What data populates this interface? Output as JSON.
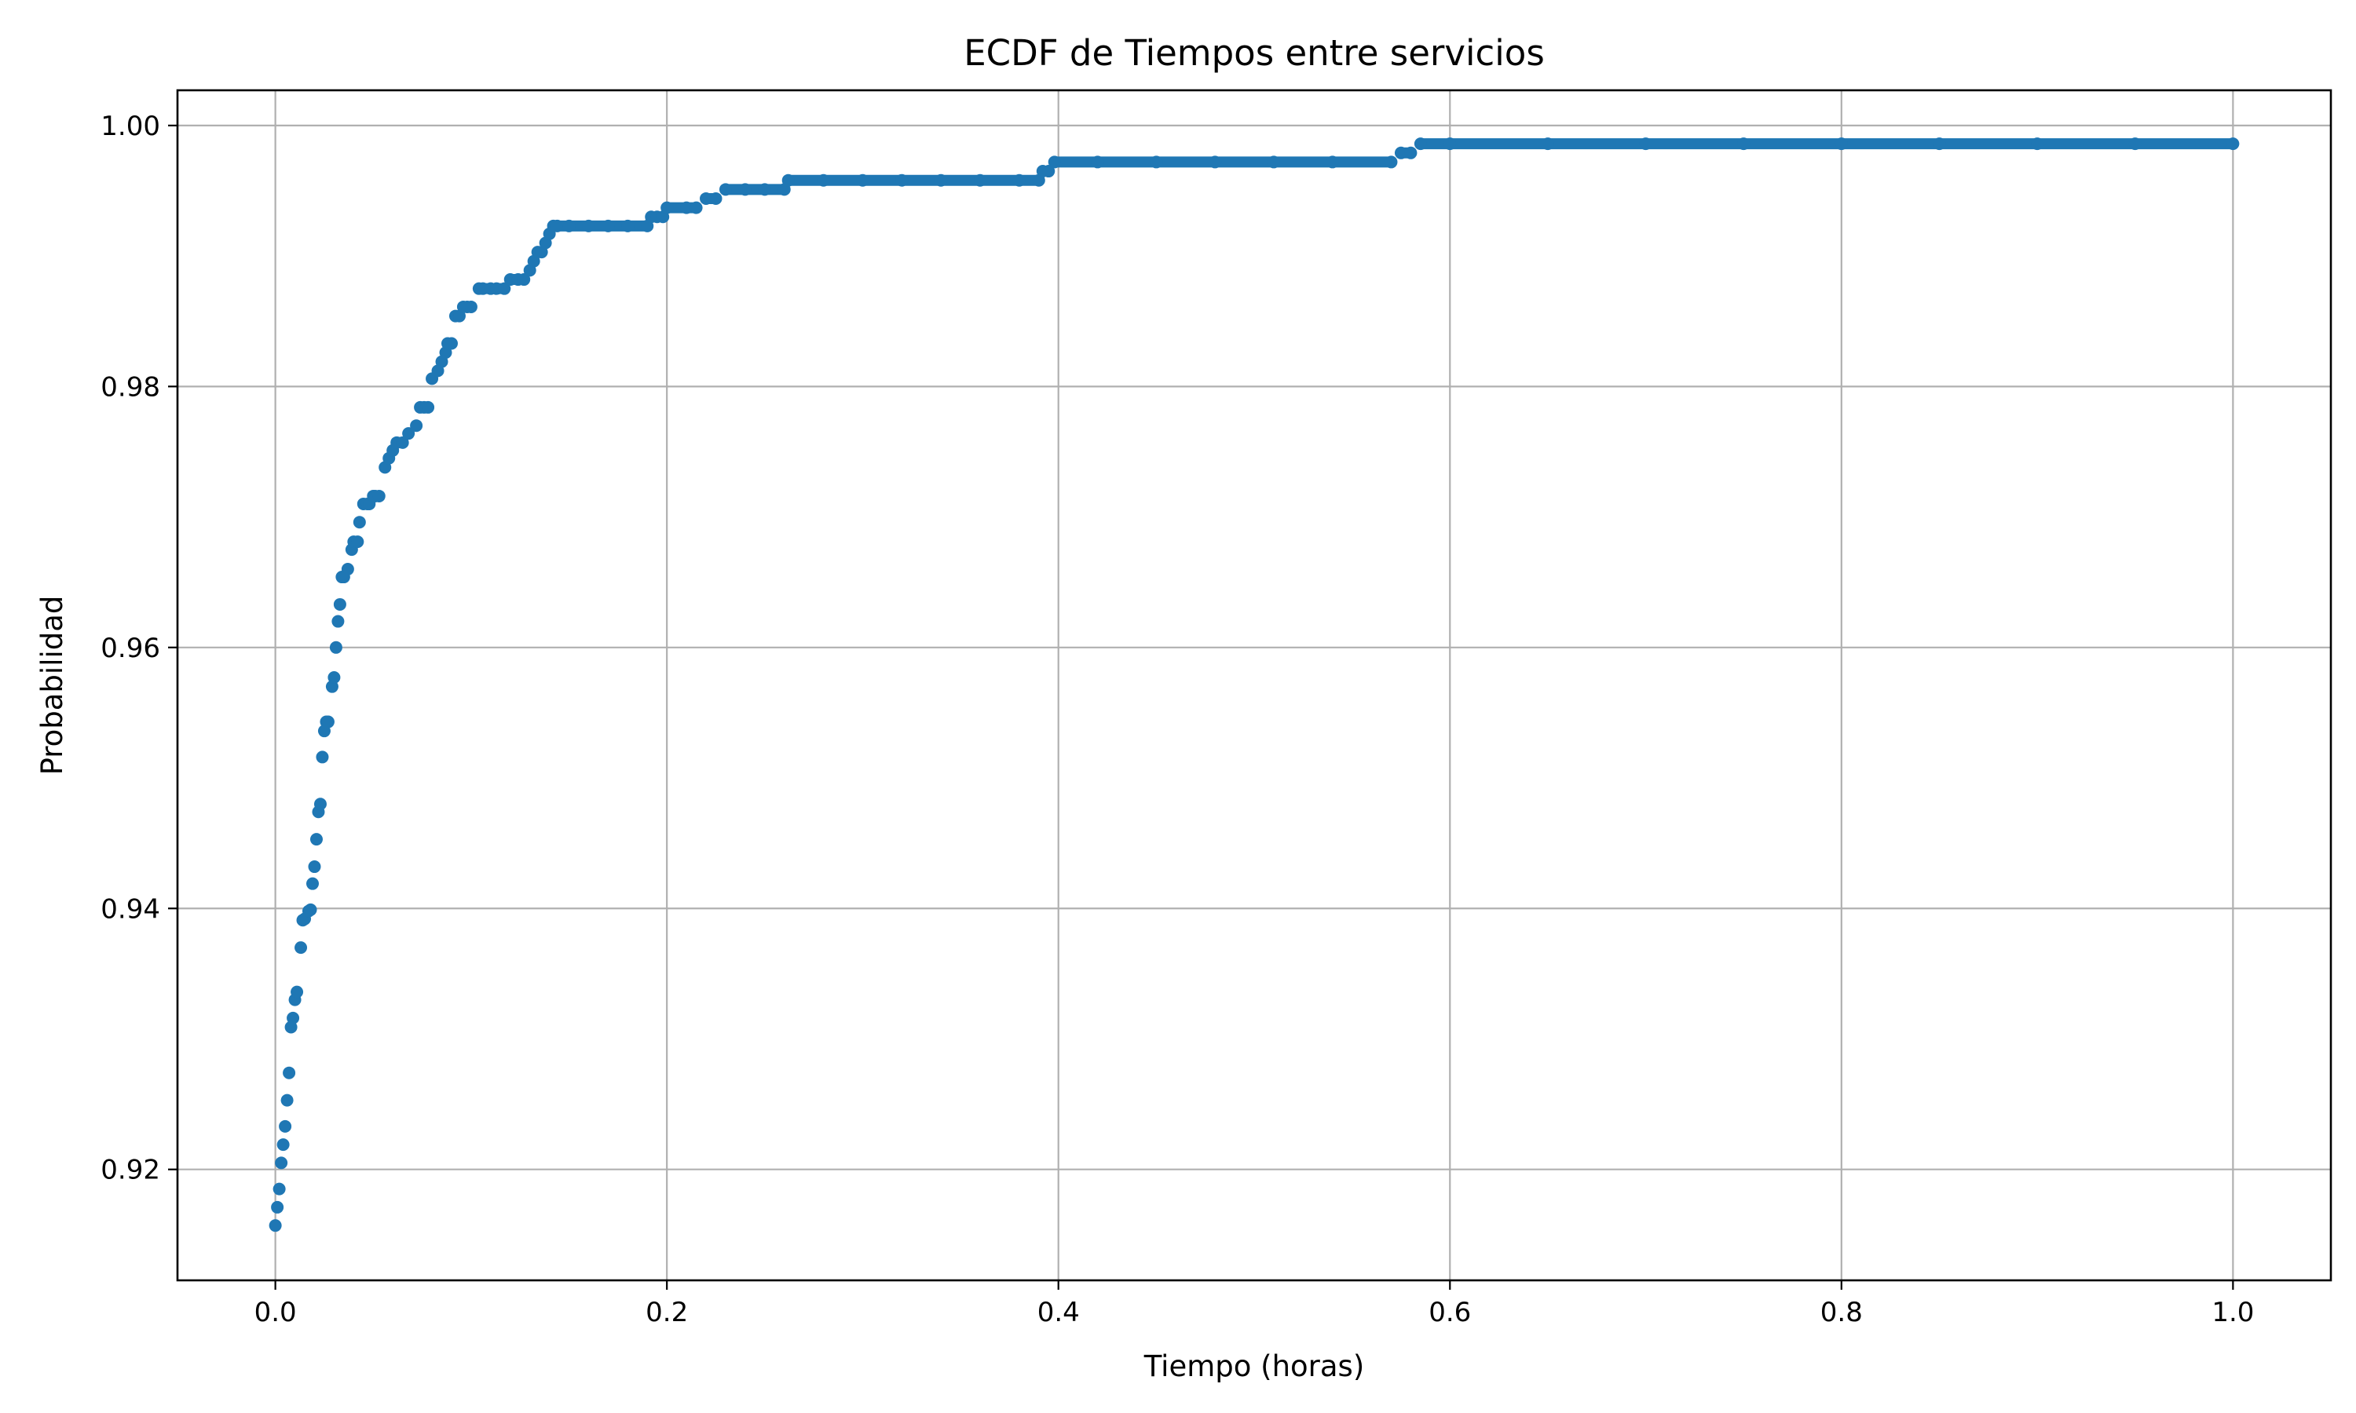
{
  "chart_data": {
    "type": "scatter",
    "title": "ECDF de Tiempos entre servicios",
    "xlabel": "Tiempo (horas)",
    "ylabel": "Probabilidad",
    "xlim": [
      -0.05,
      1.05
    ],
    "ylim": [
      0.9115,
      1.0027
    ],
    "xticks": [
      0.0,
      0.2,
      0.4,
      0.6,
      0.8,
      1.0
    ],
    "xtick_labels": [
      "0.0",
      "0.2",
      "0.4",
      "0.6",
      "0.8",
      "1.0"
    ],
    "yticks": [
      0.92,
      0.94,
      0.96,
      0.98,
      1.0
    ],
    "ytick_labels": [
      "0.92",
      "0.94",
      "0.96",
      "0.98",
      "1.00"
    ],
    "grid": true,
    "marker_color": "#1f77b4",
    "series": [
      {
        "x": [
          0.0,
          0.001,
          0.002,
          0.003,
          0.004,
          0.005,
          0.006,
          0.007,
          0.008,
          0.009,
          0.01,
          0.011,
          0.013,
          0.014,
          0.015,
          0.017,
          0.018,
          0.019,
          0.02,
          0.021,
          0.022,
          0.023,
          0.024,
          0.025,
          0.026,
          0.027,
          0.029,
          0.03,
          0.031,
          0.032,
          0.033,
          0.034,
          0.035,
          0.037,
          0.039,
          0.04,
          0.042,
          0.043,
          0.045,
          0.047,
          0.048,
          0.05,
          0.051,
          0.053,
          0.056,
          0.058,
          0.06,
          0.062,
          0.065,
          0.068,
          0.072,
          0.074,
          0.076,
          0.078,
          0.08,
          0.083,
          0.085,
          0.087,
          0.088,
          0.09,
          0.092,
          0.094,
          0.096,
          0.098,
          0.1,
          0.104,
          0.106,
          0.11,
          0.113,
          0.117,
          0.12,
          0.124,
          0.127,
          0.13,
          0.132,
          0.134,
          0.136,
          0.138,
          0.14,
          0.142,
          0.144,
          0.15,
          0.16,
          0.17,
          0.18,
          0.19,
          0.192,
          0.195,
          0.198,
          0.2,
          0.21,
          0.215,
          0.22,
          0.225,
          0.23,
          0.24,
          0.25,
          0.26,
          0.262,
          0.28,
          0.3,
          0.32,
          0.34,
          0.36,
          0.38,
          0.39,
          0.392,
          0.395,
          0.398,
          0.42,
          0.45,
          0.48,
          0.51,
          0.54,
          0.57,
          0.575,
          0.58,
          0.585,
          0.6,
          0.65,
          0.7,
          0.75,
          0.8,
          0.85,
          0.9,
          0.95,
          1.0
        ],
        "y": [
          0.9157,
          0.9171,
          0.9185,
          0.9205,
          0.9219,
          0.9233,
          0.9253,
          0.9274,
          0.9309,
          0.9316,
          0.933,
          0.9336,
          0.937,
          0.9391,
          0.9392,
          0.9398,
          0.9399,
          0.9419,
          0.9432,
          0.9453,
          0.9474,
          0.948,
          0.9516,
          0.9536,
          0.9543,
          0.9543,
          0.957,
          0.9577,
          0.96,
          0.962,
          0.9633,
          0.9654,
          0.9654,
          0.966,
          0.9675,
          0.9681,
          0.9681,
          0.9696,
          0.971,
          0.971,
          0.971,
          0.9716,
          0.9716,
          0.9716,
          0.9738,
          0.9745,
          0.9751,
          0.9757,
          0.9757,
          0.9764,
          0.977,
          0.9784,
          0.9784,
          0.9784,
          0.9806,
          0.9812,
          0.9819,
          0.9826,
          0.9833,
          0.9833,
          0.9854,
          0.9854,
          0.9861,
          0.9861,
          0.9861,
          0.9875,
          0.9875,
          0.9875,
          0.9875,
          0.9875,
          0.9882,
          0.9882,
          0.9882,
          0.9889,
          0.9896,
          0.9903,
          0.9903,
          0.991,
          0.9917,
          0.9923,
          0.9923,
          0.9923,
          0.9923,
          0.9923,
          0.9923,
          0.9923,
          0.993,
          0.993,
          0.993,
          0.9937,
          0.9937,
          0.9937,
          0.9944,
          0.9944,
          0.9951,
          0.9951,
          0.9951,
          0.9951,
          0.9958,
          0.9958,
          0.9958,
          0.9958,
          0.9958,
          0.9958,
          0.9958,
          0.9958,
          0.9965,
          0.9965,
          0.9972,
          0.9972,
          0.9972,
          0.9972,
          0.9972,
          0.9972,
          0.9972,
          0.9979,
          0.9979,
          0.9986,
          0.9986,
          0.9986,
          0.9986,
          0.9986,
          0.9986,
          0.9986,
          0.9986,
          0.9986,
          0.9986
        ]
      }
    ]
  }
}
